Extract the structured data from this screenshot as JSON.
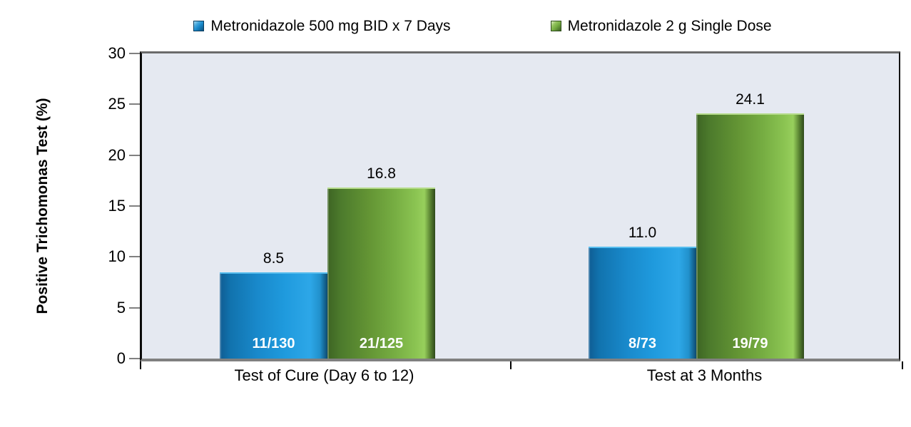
{
  "chart_data": {
    "type": "bar",
    "title": "",
    "categories": [
      "Test of Cure (Day 6 to 12)",
      "Test at 3 Months"
    ],
    "series": [
      {
        "name": "Metronidazole 500 mg BID x 7 Days",
        "color": "#1989cb",
        "values": [
          8.5,
          11.0
        ],
        "bar_labels": [
          "11/130",
          "8/73"
        ]
      },
      {
        "name": "Metronidazole 2 g Single Dose",
        "color": "#76ad42",
        "values": [
          16.8,
          24.1
        ],
        "bar_labels": [
          "21/125",
          "19/79"
        ]
      }
    ],
    "xlabel": "",
    "ylabel": "Positive Trichomonas Test (%)",
    "ylim": [
      0,
      30
    ],
    "yticks": [
      0,
      5,
      10,
      15,
      20,
      25,
      30
    ],
    "legend_position": "top",
    "grid": false,
    "plot_background": "#e5e9f1",
    "axis_line_color": "#808080",
    "value_label_decimals": 1
  }
}
